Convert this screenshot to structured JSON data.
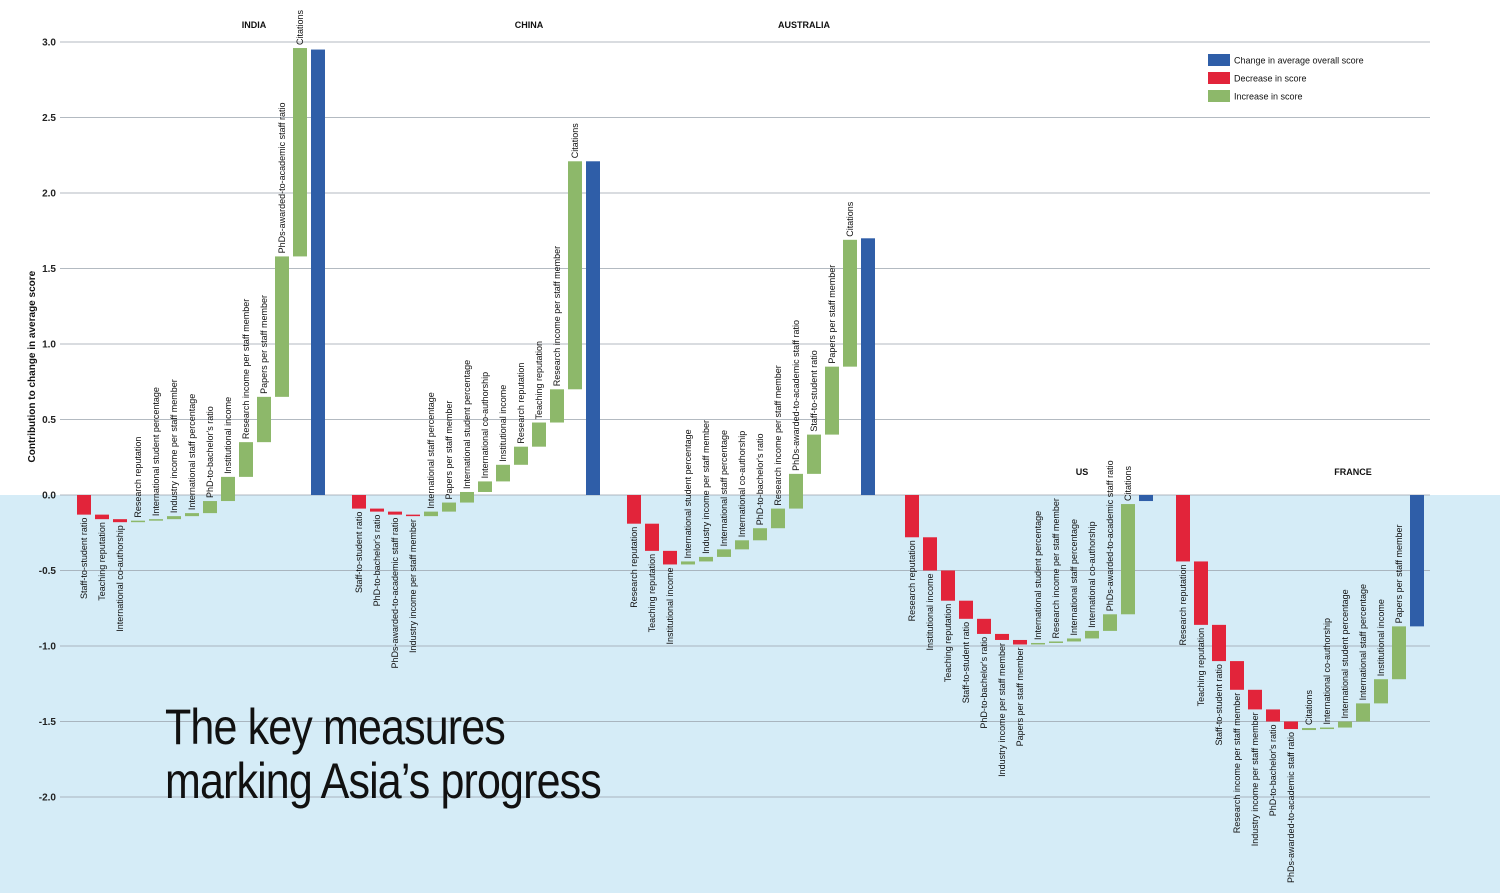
{
  "headline": {
    "line1": "The key measures",
    "line2": "marking Asia’s progress"
  },
  "colors": {
    "background": "#ffffff",
    "negative_background": "#d5ecf7",
    "total": "#2f5ea8",
    "decrease": "#e2243a",
    "increase": "#8db86a",
    "gridline": "#9aa3ad"
  },
  "chart_data": {
    "type": "waterfall",
    "ylabel": "Contribution to change in average score",
    "ylim": [
      -2.0,
      3.0
    ],
    "y_ticks": [
      {
        "value": 3.0,
        "label": "3.0"
      },
      {
        "value": 2.5,
        "label": "2.5"
      },
      {
        "value": 2.0,
        "label": "2.0"
      },
      {
        "value": 1.5,
        "label": "1.5"
      },
      {
        "value": 1.0,
        "label": "1.0"
      },
      {
        "value": 0.5,
        "label": "0.5"
      },
      {
        "value": 0.0,
        "label": "0.0"
      },
      {
        "value": -0.5,
        "label": "-0.5"
      },
      {
        "value": -1.0,
        "label": "-1.0"
      },
      {
        "value": -1.5,
        "label": "-1.5"
      },
      {
        "value": -2.0,
        "label": "-2.0"
      }
    ],
    "legend": [
      {
        "label": "Change in average overall score",
        "kind": "total"
      },
      {
        "label": "Decrease in score",
        "kind": "decrease"
      },
      {
        "label": "Increase in score",
        "kind": "increase"
      }
    ],
    "legend_position": "top-right",
    "groups": [
      {
        "country": "INDIA",
        "total": 2.95,
        "contributions": [
          {
            "label": "Staff-to-student ratio",
            "value": -0.13
          },
          {
            "label": "Teaching reputation",
            "value": -0.03
          },
          {
            "label": "International co-authorship",
            "value": -0.02
          },
          {
            "label": "Research reputation",
            "value": 0.01
          },
          {
            "label": "International student percentage",
            "value": 0.01
          },
          {
            "label": "Industry income per staff member",
            "value": 0.02
          },
          {
            "label": "International staff percentage",
            "value": 0.02
          },
          {
            "label": "PhD-to-bachelor's ratio",
            "value": 0.08
          },
          {
            "label": "Institutional income",
            "value": 0.16
          },
          {
            "label": "Research income per staff member",
            "value": 0.23
          },
          {
            "label": "Papers per staff member",
            "value": 0.3
          },
          {
            "label": "PhDs-awarded-to-academic staff ratio",
            "value": 0.93
          },
          {
            "label": "Citations",
            "value": 1.38
          }
        ]
      },
      {
        "country": "CHINA",
        "total": 2.21,
        "contributions": [
          {
            "label": "Staff-to-student ratio",
            "value": -0.09
          },
          {
            "label": "PhD-to-bachelor's ratio",
            "value": -0.02
          },
          {
            "label": "PhDs-awarded-to-academic staff ratio",
            "value": -0.02
          },
          {
            "label": "Industry income per staff member",
            "value": -0.01
          },
          {
            "label": "International staff percentage",
            "value": 0.03
          },
          {
            "label": "Papers per staff member",
            "value": 0.06
          },
          {
            "label": "International student percentage",
            "value": 0.07
          },
          {
            "label": "International co-authorship",
            "value": 0.07
          },
          {
            "label": "Institutional income",
            "value": 0.11
          },
          {
            "label": "Research reputation",
            "value": 0.12
          },
          {
            "label": "Teaching reputation",
            "value": 0.16
          },
          {
            "label": "Research income per staff member",
            "value": 0.22
          },
          {
            "label": "Citations",
            "value": 1.51
          }
        ]
      },
      {
        "country": "AUSTRALIA",
        "total": 1.7,
        "contributions": [
          {
            "label": "Research reputation",
            "value": -0.19
          },
          {
            "label": "Teaching reputation",
            "value": -0.18
          },
          {
            "label": "Institutional income",
            "value": -0.09
          },
          {
            "label": "International student percentage",
            "value": 0.02
          },
          {
            "label": "Industry income per staff member",
            "value": 0.03
          },
          {
            "label": "International staff percentage",
            "value": 0.05
          },
          {
            "label": "International co-authorship",
            "value": 0.06
          },
          {
            "label": "PhD-to-bachelor's ratio",
            "value": 0.08
          },
          {
            "label": "Research income per staff member",
            "value": 0.13
          },
          {
            "label": "PhDs-awarded-to-academic staff ratio",
            "value": 0.23
          },
          {
            "label": "Staff-to-student ratio",
            "value": 0.26
          },
          {
            "label": "Papers per staff member",
            "value": 0.45
          },
          {
            "label": "Citations",
            "value": 0.84
          }
        ]
      },
      {
        "country": "US",
        "total": -0.04,
        "contributions": [
          {
            "label": "Research reputation",
            "value": -0.28
          },
          {
            "label": "Institutional income",
            "value": -0.22
          },
          {
            "label": "Teaching reputation",
            "value": -0.2
          },
          {
            "label": "Staff-to-student ratio",
            "value": -0.12
          },
          {
            "label": "PhD-to-bachelor's ratio",
            "value": -0.1
          },
          {
            "label": "Industry income per staff member",
            "value": -0.04
          },
          {
            "label": "Papers per staff member",
            "value": -0.03
          },
          {
            "label": "International student percentage",
            "value": 0.01
          },
          {
            "label": "Research income per staff member",
            "value": 0.01
          },
          {
            "label": "International staff percentage",
            "value": 0.02
          },
          {
            "label": "International co-authorship",
            "value": 0.05
          },
          {
            "label": "PhDs-awarded-to-academic staff ratio",
            "value": 0.11
          },
          {
            "label": "Citations",
            "value": 0.73
          }
        ]
      },
      {
        "country": "FRANCE",
        "total": -0.87,
        "contributions": [
          {
            "label": "Research reputation",
            "value": -0.44
          },
          {
            "label": "Teaching reputation",
            "value": -0.42
          },
          {
            "label": "Staff-to-student ratio",
            "value": -0.24
          },
          {
            "label": "Research income per staff member",
            "value": -0.19
          },
          {
            "label": "Industry income per staff member",
            "value": -0.13
          },
          {
            "label": "PhD-to-bachelor's ratio",
            "value": -0.08
          },
          {
            "label": "PhDs-awarded-to-academic staff ratio",
            "value": -0.05
          },
          {
            "label": "Citations",
            "value": -0.0
          },
          {
            "label": "International co-authorship",
            "value": 0.01
          },
          {
            "label": "International student percentage",
            "value": 0.04
          },
          {
            "label": "International staff percentage",
            "value": 0.12
          },
          {
            "label": "Institutional income",
            "value": 0.16
          },
          {
            "label": "Papers per staff member",
            "value": 0.35
          }
        ]
      }
    ]
  }
}
